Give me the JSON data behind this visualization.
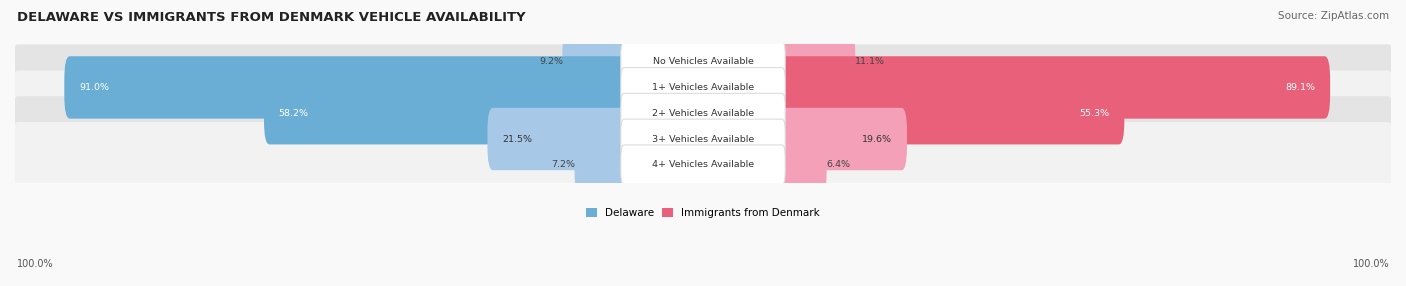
{
  "title": "DELAWARE VS IMMIGRANTS FROM DENMARK VEHICLE AVAILABILITY",
  "source": "Source: ZipAtlas.com",
  "categories": [
    "No Vehicles Available",
    "1+ Vehicles Available",
    "2+ Vehicles Available",
    "3+ Vehicles Available",
    "4+ Vehicles Available"
  ],
  "delaware_values": [
    9.2,
    91.0,
    58.2,
    21.5,
    7.2
  ],
  "denmark_values": [
    11.1,
    89.1,
    55.3,
    19.6,
    6.4
  ],
  "delaware_color_light": "#a8c8e8",
  "delaware_color_dark": "#6aaed6",
  "denmark_color_light": "#f4a0b8",
  "denmark_color_dark": "#e8607a",
  "delaware_label": "Delaware",
  "denmark_label": "Immigrants from Denmark",
  "row_bg_light": "#f2f2f2",
  "row_bg_dark": "#e4e4e4",
  "max_value": 100.0,
  "figsize": [
    14.06,
    2.86
  ],
  "dpi": 100
}
